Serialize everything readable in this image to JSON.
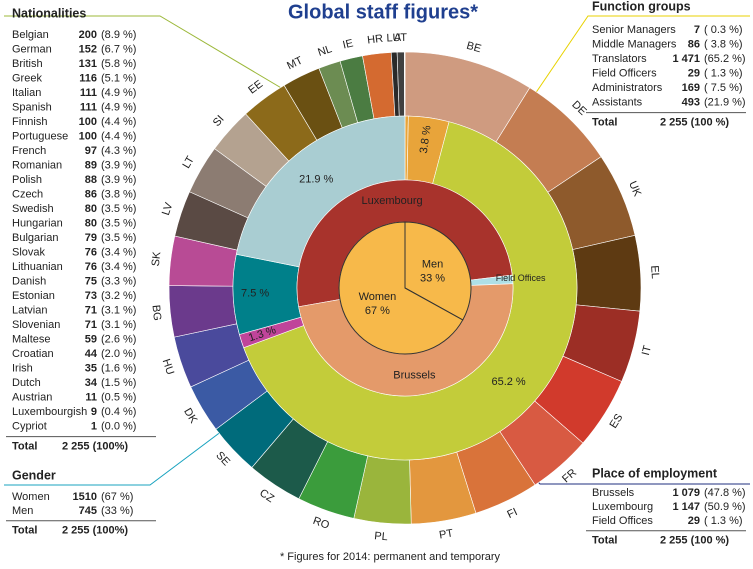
{
  "title": "Global staff figures*",
  "footnote": "* Figures for 2014: permanent and temporary",
  "tables": [
    {
      "title": "Nationalities",
      "rows": [
        [
          "Belgian",
          "200",
          "(8.9 %)"
        ],
        [
          "German",
          "152",
          "(6.7 %)"
        ],
        [
          "British",
          "131",
          "(5.8 %)"
        ],
        [
          "Greek",
          "116",
          "(5.1 %)"
        ],
        [
          "Italian",
          "111",
          "(4.9 %)"
        ],
        [
          "Spanish",
          "111",
          "(4.9 %)"
        ],
        [
          "Finnish",
          "100",
          "(4.4 %)"
        ],
        [
          "Portuguese",
          "100",
          "(4.4 %)"
        ],
        [
          "French",
          "97",
          "(4.3 %)"
        ],
        [
          "Romanian",
          "89",
          "(3.9 %)"
        ],
        [
          "Polish",
          "88",
          "(3.9 %)"
        ],
        [
          "Czech",
          "86",
          "(3.8 %)"
        ],
        [
          "Swedish",
          "80",
          "(3.5 %)"
        ],
        [
          "Hungarian",
          "80",
          "(3.5 %)"
        ],
        [
          "Bulgarian",
          "79",
          "(3.5 %)"
        ],
        [
          "Slovak",
          "76",
          "(3.4 %)"
        ],
        [
          "Lithuanian",
          "76",
          "(3.4 %)"
        ],
        [
          "Danish",
          "75",
          "(3.3 %)"
        ],
        [
          "Estonian",
          "73",
          "(3.2 %)"
        ],
        [
          "Latvian",
          "71",
          "(3.1 %)"
        ],
        [
          "Slovenian",
          "71",
          "(3.1 %)"
        ],
        [
          "Maltese",
          "59",
          "(2.6 %)"
        ],
        [
          "Croatian",
          "44",
          "(2.0 %)"
        ],
        [
          "Irish",
          "35",
          "(1.6 %)"
        ],
        [
          "Dutch",
          "34",
          "(1.5 %)"
        ],
        [
          "Austrian",
          "11",
          "(0.5 %)"
        ],
        [
          "Luxembourgish",
          "9",
          "(0.4 %)"
        ],
        [
          "Cypriot",
          "1",
          "(0.0 %)"
        ]
      ],
      "total": [
        "Total",
        "2 255 (100%)"
      ]
    },
    {
      "title": "Gender",
      "rows": [
        [
          "Women",
          "1510",
          "(67 %)"
        ],
        [
          "Men",
          "745",
          "(33 %)"
        ]
      ],
      "total": [
        "Total",
        "2 255 (100%)"
      ]
    },
    {
      "title": "Function groups",
      "rows": [
        [
          "Senior Managers",
          "7",
          "( 0.3 %)"
        ],
        [
          "Middle Managers",
          "86",
          "( 3.8 %)"
        ],
        [
          "Translators",
          "1 471",
          "(65.2 %)"
        ],
        [
          "Field Officers",
          "29",
          "( 1.3 %)"
        ],
        [
          "Administrators",
          "169",
          "( 7.5 %)"
        ],
        [
          "Assistants",
          "493",
          "(21.9 %)"
        ]
      ],
      "total": [
        "Total",
        "2 255 (100 %)"
      ]
    },
    {
      "title": "Place of employment",
      "rows": [
        [
          "Brussels",
          "1 079",
          "(47.8 %)"
        ],
        [
          "Luxembourg",
          "1 147",
          "(50.9 %)"
        ],
        [
          "Field Offices",
          "29",
          "( 1.3 %)"
        ]
      ],
      "total": [
        "Total",
        "2 255 (100 %)"
      ]
    }
  ],
  "chart_data": {
    "type": "sunburst",
    "rings": [
      {
        "categories": [
          "Men",
          "Women"
        ],
        "values": [
          745,
          1510
        ],
        "value_labels": [
          "33 %",
          "67 %"
        ],
        "colors": [
          "#f7b94a",
          "#f7b94a"
        ]
      },
      {
        "categories": [
          "Luxembourg",
          "Field Offices",
          "Brussels"
        ],
        "values": [
          1147,
          29,
          1079
        ],
        "colors": [
          "#a8332c",
          "#aee0e6",
          "#e49a6a"
        ]
      },
      {
        "values": [
          7,
          86,
          1471,
          29,
          169,
          493
        ],
        "value_labels": [
          null,
          "3.8 %",
          "65.2 %",
          "1.3 %",
          "7.5 %",
          "21.9 %"
        ],
        "colors": [
          "#e8a43a",
          "#e8a43a",
          "#c3cc3a",
          "#c0449a",
          "#00808a",
          "#a9cdd2"
        ]
      },
      {
        "categories": [
          "BE",
          "DE",
          "UK",
          "EL",
          "IT",
          "ES",
          "FR",
          "FI",
          "PT",
          "PL",
          "RO",
          "CZ",
          "SE",
          "DK",
          "HU",
          "BG",
          "SK",
          "LV",
          "LT",
          "SI",
          "EE",
          "MT",
          "NL",
          "IE",
          "HR",
          "LU",
          "AT",
          null
        ],
        "values": [
          200,
          152,
          131,
          116,
          111,
          111,
          97,
          100,
          100,
          88,
          89,
          86,
          80,
          75,
          80,
          79,
          76,
          71,
          76,
          71,
          73,
          59,
          34,
          35,
          44,
          9,
          11,
          1
        ],
        "colors": [
          "#cf9b80",
          "#c47d52",
          "#8e5a2c",
          "#5e3a12",
          "#9c2e25",
          "#d13a2c",
          "#d85a42",
          "#d9733a",
          "#e3973e",
          "#9ab53c",
          "#3b9c3c",
          "#1c5a4a",
          "#006b7b",
          "#3b5aa4",
          "#4a4a9c",
          "#6b3a8c",
          "#b84b95",
          "#5a4a44",
          "#8c7c72",
          "#b4a290",
          "#8c6a1a",
          "#6a5012",
          "#6c8c52",
          "#4b7c42",
          "#d46a30",
          "#2a2a2a",
          "#404040",
          "#aaaaaa"
        ]
      }
    ]
  }
}
